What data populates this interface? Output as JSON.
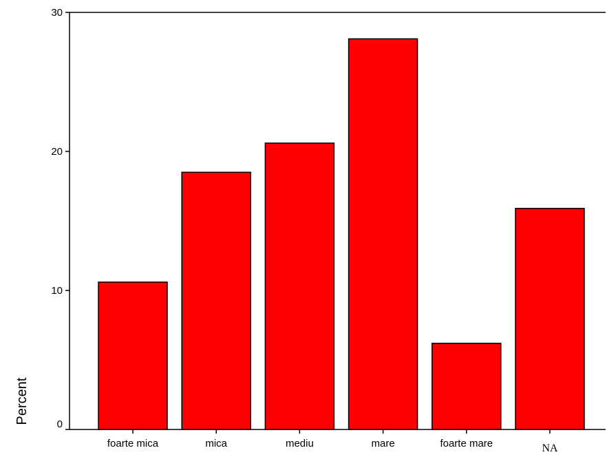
{
  "chart_data": {
    "type": "bar",
    "categories": [
      "foarte mica",
      "mica",
      "mediu",
      "mare",
      "foarte mare",
      "NA"
    ],
    "values": [
      10.6,
      18.5,
      20.6,
      28.1,
      6.2,
      15.9
    ],
    "xlabel": "",
    "ylabel": "Percent",
    "ylim": [
      0,
      30
    ],
    "yticks": [
      "0",
      "10",
      "20",
      "30"
    ],
    "bar_color": "#ff0000",
    "grid": false,
    "legend": "none"
  }
}
